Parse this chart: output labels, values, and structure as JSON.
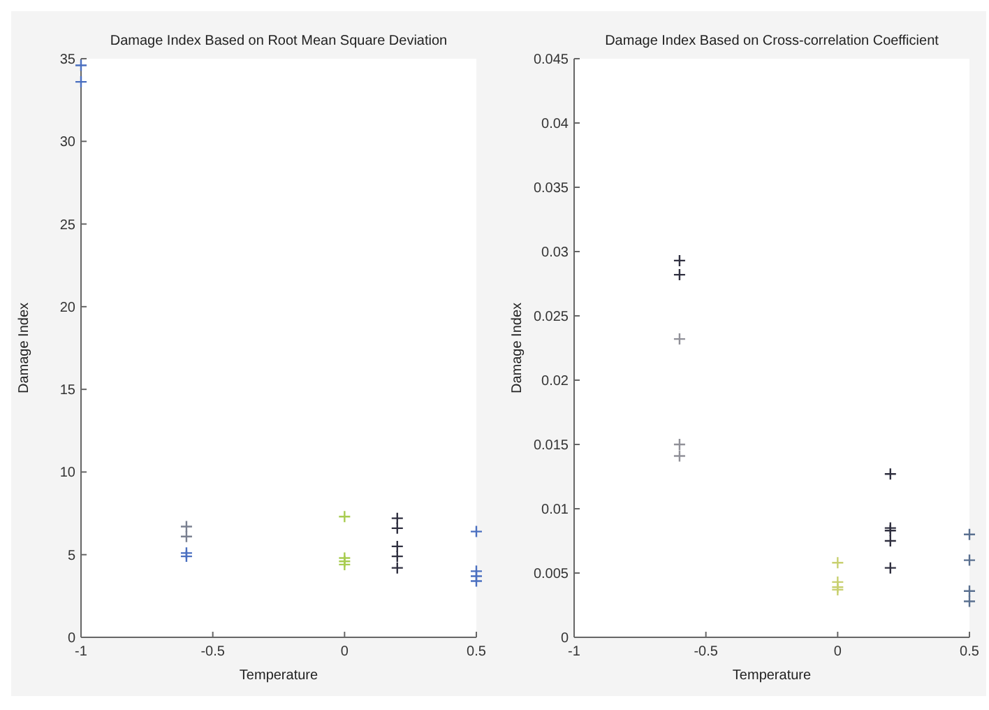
{
  "chart_data": [
    {
      "type": "scatter",
      "title": "Damage Index Based on Root Mean Square Deviation",
      "xlabel": "Temperature",
      "ylabel": "Damage Index",
      "xlim": [
        -1,
        0.5
      ],
      "xticks": [
        -1,
        -0.5,
        0,
        0.5
      ],
      "ylim": [
        0,
        35
      ],
      "yticks": [
        0,
        5,
        10,
        15,
        20,
        25,
        30,
        35
      ],
      "grid": false,
      "marker": "cross",
      "series": [
        {
          "color": "#4a6fc0",
          "x": [
            -1,
            -1
          ],
          "values": [
            34.6,
            33.6
          ]
        },
        {
          "color": "#7a8090",
          "x": [
            -0.6,
            -0.6
          ],
          "values": [
            6.7,
            6.1
          ]
        },
        {
          "color": "#4a6fc0",
          "x": [
            -0.6,
            -0.6
          ],
          "values": [
            5.1,
            4.9
          ]
        },
        {
          "color": "#a8cc50",
          "x": [
            0,
            0,
            0,
            0
          ],
          "values": [
            7.3,
            4.8,
            4.6,
            4.4
          ]
        },
        {
          "color": "#303040",
          "x": [
            0.2,
            0.2,
            0.2,
            0.2,
            0.2
          ],
          "values": [
            7.2,
            6.6,
            5.5,
            4.9,
            4.2
          ]
        },
        {
          "color": "#4a6fc0",
          "x": [
            0.5,
            0.5,
            0.5,
            0.5
          ],
          "values": [
            6.4,
            4.0,
            3.7,
            3.4
          ]
        }
      ]
    },
    {
      "type": "scatter",
      "title": "Damage Index Based on Cross-correlation Coefficient",
      "xlabel": "Temperature",
      "ylabel": "Damage Index",
      "xlim": [
        -1,
        0.5
      ],
      "xticks": [
        -1,
        -0.5,
        0,
        0.5
      ],
      "ylim": [
        0,
        0.045
      ],
      "yticks": [
        0,
        0.005,
        0.01,
        0.015,
        0.02,
        0.025,
        0.03,
        0.035,
        0.04,
        0.045
      ],
      "grid": false,
      "marker": "cross",
      "series": [
        {
          "color": "#303040",
          "x": [
            -0.6,
            -0.6
          ],
          "values": [
            0.0293,
            0.0282
          ]
        },
        {
          "color": "#909098",
          "x": [
            -0.6,
            -0.6,
            -0.6
          ],
          "values": [
            0.0232,
            0.015,
            0.0141
          ]
        },
        {
          "color": "#c8d070",
          "x": [
            0,
            0,
            0,
            0
          ],
          "values": [
            0.0058,
            0.0043,
            0.0039,
            0.0037
          ]
        },
        {
          "color": "#303040",
          "x": [
            0.2,
            0.2,
            0.2,
            0.2,
            0.2
          ],
          "values": [
            0.0127,
            0.0085,
            0.0083,
            0.0075,
            0.0054
          ]
        },
        {
          "color": "#5a7090",
          "x": [
            0.5,
            0.5,
            0.5,
            0.5
          ],
          "values": [
            0.008,
            0.006,
            0.0036,
            0.0028
          ]
        }
      ]
    }
  ]
}
